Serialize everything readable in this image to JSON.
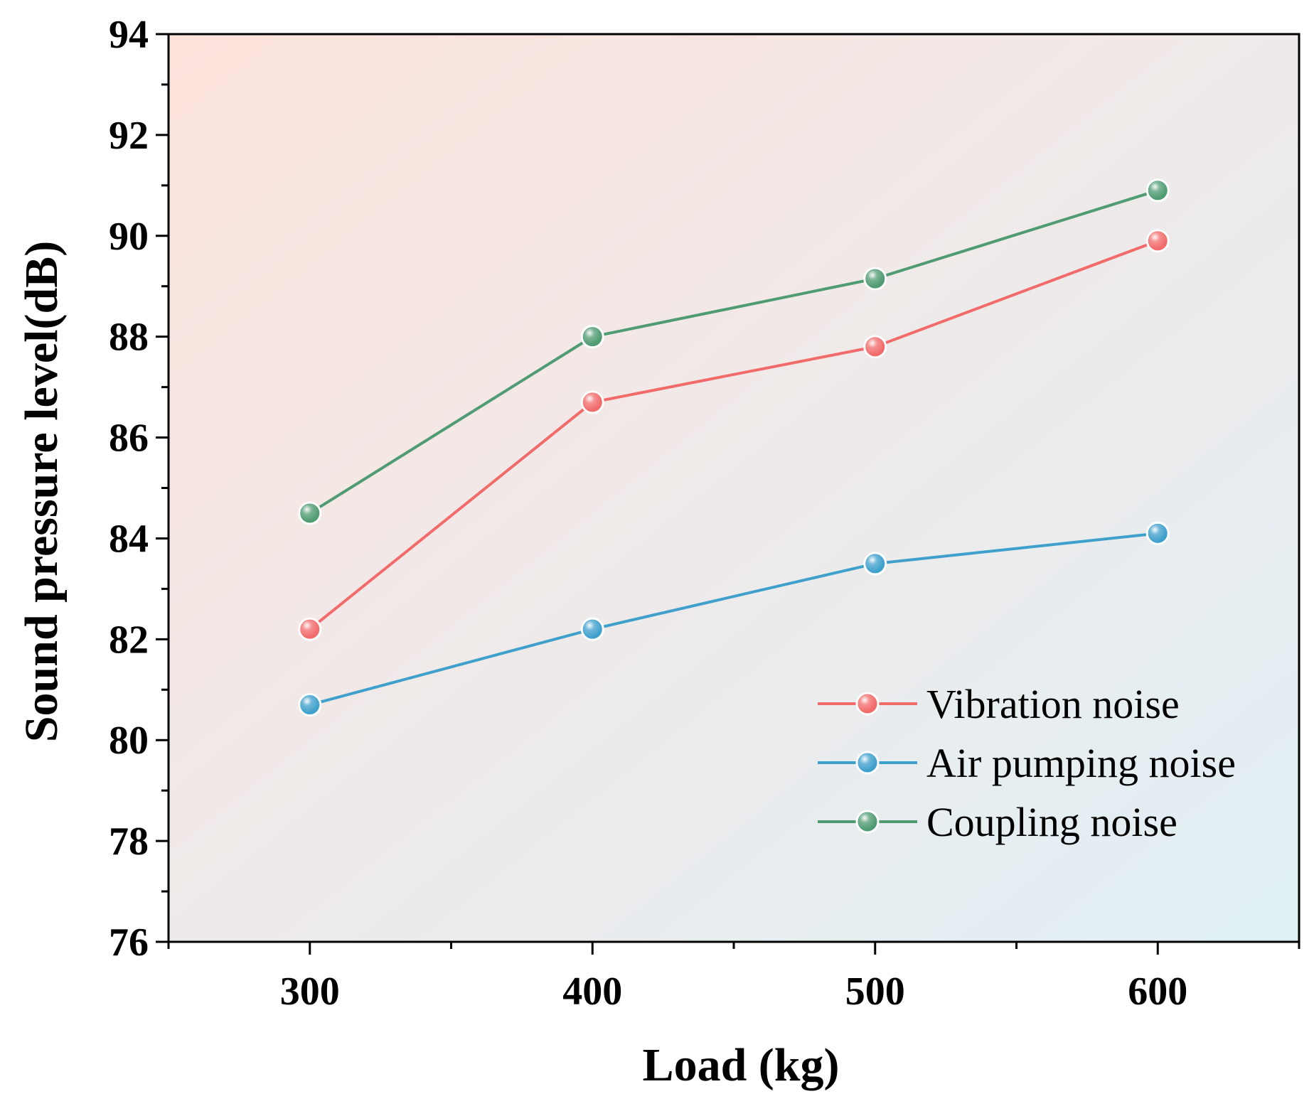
{
  "chart_data": {
    "type": "line",
    "title": "",
    "xlabel": "Load (kg)",
    "ylabel": "Sound pressure level(dB)",
    "x": [
      300,
      400,
      500,
      600
    ],
    "xlim": [
      250,
      650
    ],
    "ylim": [
      76,
      94
    ],
    "xticks": [
      "300",
      "400",
      "500",
      "600"
    ],
    "yticks": [
      "76",
      "78",
      "80",
      "82",
      "84",
      "86",
      "88",
      "90",
      "92",
      "94"
    ],
    "grid": false,
    "legend_position": "bottom-right",
    "series": [
      {
        "name": "Vibration noise",
        "color": "#f26b6b",
        "values": [
          82.2,
          86.7,
          87.8,
          89.9
        ]
      },
      {
        "name": "Air pumping noise",
        "color": "#3fa0cc",
        "values": [
          80.7,
          82.2,
          83.5,
          84.1
        ]
      },
      {
        "name": "Coupling noise",
        "color": "#4f9b72",
        "values": [
          84.5,
          88.0,
          89.15,
          90.9
        ]
      }
    ],
    "background_gradient": [
      "#fde3dc",
      "#e0f0f5"
    ]
  }
}
